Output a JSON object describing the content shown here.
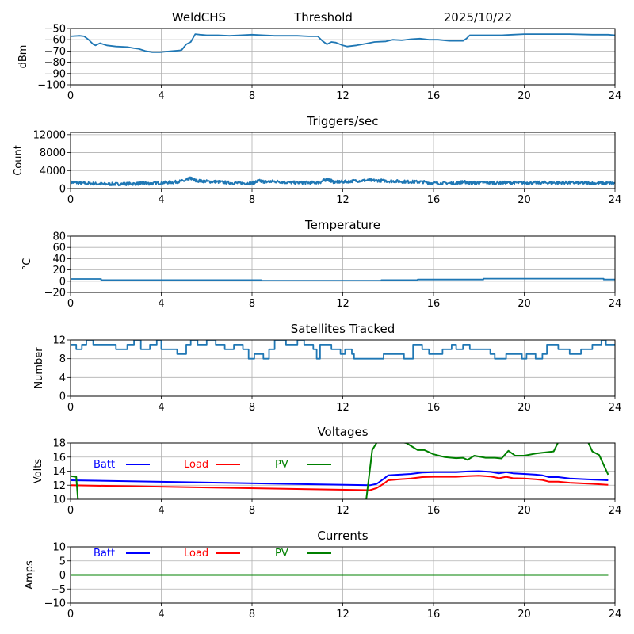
{
  "figure": {
    "header": {
      "station": "WeldCHS",
      "mode": "Threshold",
      "date": "2025/10/22"
    }
  },
  "chart_data": [
    {
      "id": "signal",
      "type": "line",
      "title": "",
      "xlabel": "",
      "ylabel": "dBm",
      "xlim": [
        0,
        24
      ],
      "ylim": [
        -100,
        -50
      ],
      "xticks": [
        0,
        4,
        8,
        12,
        16,
        20,
        24
      ],
      "yticks": [
        -100,
        -90,
        -80,
        -70,
        -60,
        -50
      ],
      "ytick_labels": [
        "−100",
        "−90",
        "−80",
        "−70",
        "−60",
        "−50"
      ],
      "grid": true,
      "series": [
        {
          "name": "Threshold",
          "color": "#1f77b4",
          "x": [
            0,
            0.4,
            0.6,
            0.8,
            1.0,
            1.1,
            1.3,
            1.6,
            2.0,
            2.5,
            2.8,
            3.0,
            3.3,
            3.6,
            3.95,
            4.2,
            4.5,
            4.8,
            4.9,
            5.1,
            5.3,
            5.5,
            5.7,
            6.0,
            6.5,
            7.0,
            7.5,
            8.0,
            8.5,
            9.0,
            9.5,
            10.0,
            10.5,
            10.9,
            11.1,
            11.3,
            11.5,
            11.7,
            12.0,
            12.2,
            12.6,
            13.0,
            13.4,
            13.9,
            14.2,
            14.6,
            15.0,
            15.4,
            15.8,
            16.2,
            16.7,
            17.3,
            17.45,
            17.6,
            18.0,
            19.0,
            19.5,
            20.0,
            21.0,
            22.0,
            23.0,
            23.7,
            24.0
          ],
          "y": [
            -57,
            -56.5,
            -57,
            -60,
            -64,
            -65,
            -63,
            -65,
            -66,
            -66.5,
            -67.5,
            -68,
            -70,
            -71,
            -71,
            -70.5,
            -70,
            -69.5,
            -69,
            -64,
            -62,
            -55,
            -55.5,
            -56,
            -56,
            -56.5,
            -56,
            -55.5,
            -56,
            -56.5,
            -56.5,
            -56.5,
            -57,
            -57,
            -61,
            -64,
            -62,
            -62.5,
            -65,
            -66,
            -65,
            -63.5,
            -62,
            -61.5,
            -60,
            -60.5,
            -59.5,
            -59,
            -60,
            -60,
            -61,
            -61,
            -59,
            -56,
            -56,
            -56,
            -55.5,
            -55,
            -55,
            -55,
            -55.5,
            -55.5,
            -56
          ]
        }
      ]
    },
    {
      "id": "triggers",
      "type": "line",
      "title": "Triggers/sec",
      "xlabel": "",
      "ylabel": "Count",
      "xlim": [
        0,
        24
      ],
      "ylim": [
        0,
        12500
      ],
      "xticks": [
        0,
        4,
        8,
        12,
        16,
        20,
        24
      ],
      "yticks": [
        0,
        4000,
        8000,
        12000
      ],
      "ytick_labels": [
        "0",
        "4000",
        "8000",
        "12000"
      ],
      "grid": true,
      "series": [
        {
          "name": "Triggers",
          "color": "#1f77b4",
          "x": [
            0,
            0.5,
            1,
            1.5,
            2,
            2.5,
            3,
            3.2,
            3.5,
            4,
            4.5,
            5,
            5.3,
            5.5,
            6,
            6.5,
            7,
            7.5,
            8,
            8.3,
            8.6,
            9,
            9.5,
            10,
            10.5,
            11,
            11.3,
            11.6,
            12,
            12.5,
            13,
            13.5,
            14,
            14.5,
            15,
            15.5,
            16,
            16.5,
            17,
            17.3,
            17.6,
            18,
            18.5,
            19,
            19.5,
            20,
            20.5,
            21,
            21.5,
            22,
            22.5,
            23,
            23.5,
            24
          ],
          "y": [
            1400,
            1200,
            1100,
            1000,
            1000,
            1050,
            1100,
            1300,
            1100,
            1300,
            1400,
            1700,
            2300,
            1800,
            1600,
            1500,
            1300,
            1200,
            1200,
            1700,
            1500,
            1600,
            1400,
            1300,
            1300,
            1400,
            2100,
            1500,
            1500,
            1700,
            1800,
            1800,
            1700,
            1600,
            1500,
            1500,
            1200,
            1200,
            1200,
            1500,
            1300,
            1300,
            1300,
            1300,
            1300,
            1300,
            1300,
            1300,
            1300,
            1300,
            1250,
            1200,
            1200,
            1200
          ],
          "noise_amplitude": 350
        }
      ]
    },
    {
      "id": "temperature",
      "type": "line",
      "title": "Temperature",
      "xlabel": "",
      "ylabel": "°C",
      "xlim": [
        0,
        24
      ],
      "ylim": [
        -20,
        80
      ],
      "xticks": [
        0,
        4,
        8,
        12,
        16,
        20,
        24
      ],
      "yticks": [
        -20,
        0,
        20,
        40,
        60,
        80
      ],
      "ytick_labels": [
        "−20",
        "0",
        "20",
        "40",
        "60",
        "80"
      ],
      "grid": true,
      "series": [
        {
          "name": "Temperature",
          "color": "#1f77b4",
          "step": true,
          "x": [
            0,
            1.35,
            8.4,
            13.7,
            15.3,
            18.2,
            23.5,
            24
          ],
          "y": [
            4,
            2,
            1,
            2,
            3,
            4.5,
            3,
            3
          ]
        }
      ]
    },
    {
      "id": "satellites",
      "type": "line",
      "title": "Satellites Tracked",
      "xlabel": "",
      "ylabel": "Number",
      "xlim": [
        0,
        24
      ],
      "ylim": [
        0,
        12
      ],
      "xticks": [
        0,
        4,
        8,
        12,
        16,
        20,
        24
      ],
      "yticks": [
        0,
        4,
        8,
        12
      ],
      "ytick_labels": [
        "0",
        "4",
        "8",
        "12"
      ],
      "grid": true,
      "series": [
        {
          "name": "Satellites",
          "color": "#1f77b4",
          "step": true,
          "x": [
            0,
            0.25,
            0.5,
            0.7,
            1.0,
            1.5,
            2.0,
            2.5,
            2.8,
            3.1,
            3.5,
            3.8,
            4.0,
            4.7,
            5.1,
            5.3,
            5.6,
            6.0,
            6.4,
            6.8,
            7.2,
            7.6,
            7.85,
            8.1,
            8.5,
            8.75,
            9.0,
            9.5,
            10.0,
            10.3,
            10.7,
            10.85,
            11.0,
            11.5,
            11.9,
            12.1,
            12.4,
            12.5,
            13.3,
            13.8,
            14.5,
            14.7,
            15.1,
            15.5,
            15.8,
            16.4,
            16.8,
            17.0,
            17.3,
            17.6,
            18.2,
            18.5,
            18.7,
            19.2,
            19.5,
            19.9,
            20.1,
            20.5,
            20.8,
            21.0,
            21.5,
            22.0,
            22.5,
            23.0,
            23.4,
            23.6,
            24.0
          ],
          "y": [
            11,
            10,
            11,
            12,
            11,
            11,
            10,
            11,
            12,
            10,
            11,
            12,
            10,
            9,
            11,
            12,
            11,
            12,
            11,
            10,
            11,
            10,
            8,
            9,
            8,
            10,
            12,
            11,
            12,
            11,
            10,
            8,
            11,
            10,
            9,
            10,
            9,
            8,
            8,
            9,
            9,
            8,
            11,
            10,
            9,
            10,
            11,
            10,
            11,
            10,
            10,
            9,
            8,
            9,
            9,
            8,
            9,
            8,
            9,
            11,
            10,
            9,
            10,
            11,
            12,
            11,
            11
          ]
        }
      ]
    },
    {
      "id": "voltages",
      "type": "line",
      "title": "Voltages",
      "xlabel": "",
      "ylabel": "Volts",
      "xlim": [
        0,
        24
      ],
      "ylim": [
        10,
        18
      ],
      "xticks": [
        0,
        4,
        8,
        12,
        16,
        20,
        24
      ],
      "yticks": [
        10,
        12,
        14,
        16,
        18
      ],
      "ytick_labels": [
        "10",
        "12",
        "14",
        "16",
        "18"
      ],
      "grid": true,
      "legend": {
        "placement": "top-left-inline",
        "entries": [
          {
            "label": "Batt",
            "color": "#0000ff"
          },
          {
            "label": "Load",
            "color": "#ff0000"
          },
          {
            "label": "PV",
            "color": "#008000"
          }
        ]
      },
      "series": [
        {
          "name": "Batt",
          "color": "#0000ff",
          "x": [
            0,
            13.2,
            13.5,
            13.8,
            14.0,
            14.5,
            15.0,
            15.5,
            16.0,
            17.0,
            17.5,
            18.0,
            18.5,
            18.9,
            19.2,
            19.5,
            20.0,
            20.5,
            20.8,
            21.1,
            21.5,
            22.0,
            23.0,
            23.7
          ],
          "y": [
            12.7,
            12.0,
            12.2,
            12.9,
            13.4,
            13.5,
            13.6,
            13.8,
            13.85,
            13.85,
            13.95,
            14.0,
            13.9,
            13.7,
            13.85,
            13.7,
            13.6,
            13.5,
            13.4,
            13.15,
            13.15,
            12.95,
            12.8,
            12.7
          ]
        },
        {
          "name": "Load",
          "color": "#ff0000",
          "x": [
            0,
            13.2,
            13.5,
            13.8,
            14.0,
            14.5,
            15.0,
            15.5,
            16.0,
            17.0,
            17.5,
            18.0,
            18.5,
            18.9,
            19.2,
            19.5,
            20.0,
            20.5,
            20.8,
            21.1,
            21.5,
            22.0,
            23.0,
            23.7
          ],
          "y": [
            12.0,
            11.3,
            11.6,
            12.2,
            12.7,
            12.85,
            12.95,
            13.15,
            13.2,
            13.2,
            13.3,
            13.35,
            13.25,
            13.0,
            13.2,
            13.0,
            12.95,
            12.85,
            12.75,
            12.5,
            12.5,
            12.35,
            12.2,
            12.05
          ]
        },
        {
          "name": "PV",
          "color": "#008000",
          "x": [
            0,
            0.25,
            0.35,
            13.0,
            13.3,
            13.6,
            14.8,
            15.3,
            15.6,
            16.0,
            16.5,
            17.0,
            17.3,
            17.5,
            17.8,
            18.3,
            18.7,
            19.0,
            19.3,
            19.6,
            20.0,
            20.5,
            21.3,
            21.6,
            22.8,
            23.0,
            23.3,
            23.7
          ],
          "y": [
            13.3,
            13.2,
            9.0,
            9.0,
            17.0,
            18.6,
            18.0,
            17.0,
            17.0,
            16.4,
            16.0,
            15.85,
            15.9,
            15.6,
            16.2,
            15.9,
            15.9,
            15.8,
            16.9,
            16.2,
            16.2,
            16.5,
            16.8,
            18.8,
            18.2,
            16.8,
            16.3,
            13.5
          ]
        }
      ]
    },
    {
      "id": "currents",
      "type": "line",
      "title": "Currents",
      "xlabel": "",
      "ylabel": "Amps",
      "xlim": [
        0,
        24
      ],
      "ylim": [
        -10,
        10
      ],
      "xticks": [
        0,
        4,
        8,
        12,
        16,
        20,
        24
      ],
      "yticks": [
        -10,
        -5,
        0,
        5,
        10
      ],
      "ytick_labels": [
        "−10",
        "−5",
        "0",
        "5",
        "10"
      ],
      "grid": true,
      "legend": {
        "placement": "top-left-inline",
        "entries": [
          {
            "label": "Batt",
            "color": "#0000ff"
          },
          {
            "label": "Load",
            "color": "#ff0000"
          },
          {
            "label": "PV",
            "color": "#008000"
          }
        ]
      },
      "series": [
        {
          "name": "Batt",
          "color": "#0000ff",
          "x": [
            0,
            23.7
          ],
          "y": [
            0,
            0
          ]
        },
        {
          "name": "Load",
          "color": "#ff0000",
          "x": [
            0,
            23.7
          ],
          "y": [
            0,
            0
          ]
        },
        {
          "name": "PV",
          "color": "#008000",
          "x": [
            0,
            23.7
          ],
          "y": [
            0,
            0
          ]
        }
      ]
    }
  ]
}
